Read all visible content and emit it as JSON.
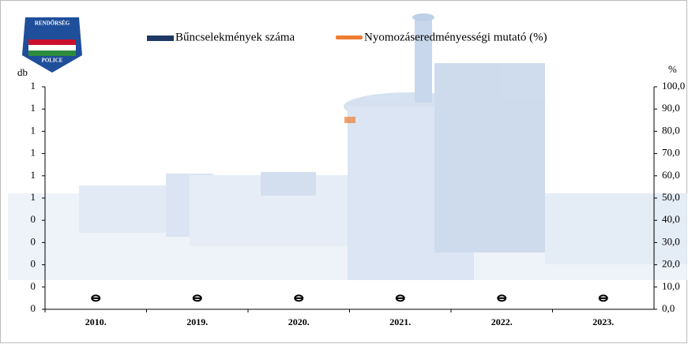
{
  "chart_data": {
    "type": "bar-line",
    "y_label": "db",
    "y2_label": "%",
    "logo": {
      "top": "RENDŐRSÉG",
      "bottom": "POLICE"
    },
    "categories": [
      "2010.",
      "2019.",
      "2020.",
      "2021.",
      "2022.",
      "2023."
    ],
    "series": [
      {
        "name": "Bűncselekmények száma",
        "type": "bar",
        "color": "#1f3864",
        "values": [
          0,
          0,
          0,
          0,
          0,
          0
        ]
      },
      {
        "name": "Nyomozáseredményességi mutató (%)",
        "type": "line",
        "axis": "y2",
        "color": "#ed7d31",
        "values": [
          5,
          5,
          5,
          5,
          5,
          5
        ]
      }
    ],
    "ylim": [
      0,
      1
    ],
    "yticks": [
      {
        "value": 0,
        "label": "0"
      },
      {
        "value": 0.1,
        "label": "0"
      },
      {
        "value": 0.2,
        "label": "0"
      },
      {
        "value": 0.3,
        "label": "0"
      },
      {
        "value": 0.4,
        "label": "0"
      },
      {
        "value": 0.5,
        "label": "1"
      },
      {
        "value": 0.6,
        "label": "1"
      },
      {
        "value": 0.7,
        "label": "1"
      },
      {
        "value": 0.8,
        "label": "1"
      },
      {
        "value": 0.9,
        "label": "1"
      },
      {
        "value": 1,
        "label": "1"
      }
    ],
    "y2lim": [
      0,
      100
    ],
    "y2ticks": [
      {
        "value": 0,
        "label": "0,0"
      },
      {
        "value": 10,
        "label": "10,0"
      },
      {
        "value": 20,
        "label": "20,0"
      },
      {
        "value": 30,
        "label": "30,0"
      },
      {
        "value": 40,
        "label": "40,0"
      },
      {
        "value": 50,
        "label": "50,0"
      },
      {
        "value": 60,
        "label": "60,0"
      },
      {
        "value": 70,
        "label": "70,0"
      },
      {
        "value": 80,
        "label": "80,0"
      },
      {
        "value": 90,
        "label": "90,0"
      },
      {
        "value": 100,
        "label": "100,0"
      }
    ]
  }
}
